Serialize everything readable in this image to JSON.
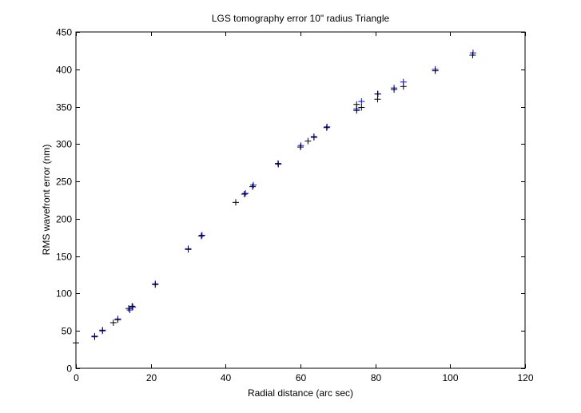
{
  "chart_data": {
    "type": "scatter",
    "title": "LGS tomography error 10\" radius Triangle",
    "xlabel": "Radial distance (arc sec)",
    "ylabel": "RMS wavefront error (nm)",
    "xlim": [
      0,
      120
    ],
    "ylim": [
      0,
      450
    ],
    "xticks": [
      "0",
      "20",
      "40",
      "60",
      "80",
      "100",
      "120"
    ],
    "yticks": [
      "0",
      "50",
      "100",
      "150",
      "200",
      "250",
      "300",
      "350",
      "400",
      "450"
    ],
    "grid": false,
    "marker": "+",
    "colors": {
      "blue_series": "#0000ff",
      "black_series": "#000000",
      "axes": "#000000"
    },
    "series": [
      {
        "color": "#0000ff",
        "points": [
          [
            5.0,
            43
          ],
          [
            7.1,
            50
          ],
          [
            11.2,
            66
          ],
          [
            14.4,
            78
          ],
          [
            15.2,
            82
          ],
          [
            21.2,
            113
          ],
          [
            30.0,
            160
          ],
          [
            33.7,
            178
          ],
          [
            45.3,
            234
          ],
          [
            47.4,
            245
          ],
          [
            54.1,
            273
          ],
          [
            60.1,
            298
          ],
          [
            63.6,
            310
          ],
          [
            67.1,
            323
          ],
          [
            75.0,
            347
          ],
          [
            76.3,
            357
          ],
          [
            80.7,
            367
          ],
          [
            85.0,
            375
          ],
          [
            87.5,
            383
          ],
          [
            96.0,
            400
          ],
          [
            106.1,
            422
          ]
        ]
      },
      {
        "color": "#000000",
        "points": [
          [
            0.0,
            34
          ],
          [
            5.0,
            42
          ],
          [
            7.1,
            51
          ],
          [
            10.0,
            61
          ],
          [
            11.2,
            65
          ],
          [
            14.1,
            80
          ],
          [
            15.0,
            83
          ],
          [
            21.2,
            112
          ],
          [
            30.0,
            159
          ],
          [
            33.5,
            177
          ],
          [
            42.7,
            222
          ],
          [
            45.0,
            233
          ],
          [
            47.2,
            243
          ],
          [
            54.0,
            274
          ],
          [
            60.0,
            296
          ],
          [
            62.0,
            304
          ],
          [
            63.6,
            309
          ],
          [
            67.0,
            322
          ],
          [
            75.0,
            345
          ],
          [
            75.0,
            353
          ],
          [
            76.3,
            349
          ],
          [
            80.6,
            360
          ],
          [
            80.6,
            367
          ],
          [
            85.0,
            373
          ],
          [
            87.5,
            377
          ],
          [
            96.0,
            398
          ],
          [
            106.0,
            419
          ]
        ]
      }
    ]
  }
}
